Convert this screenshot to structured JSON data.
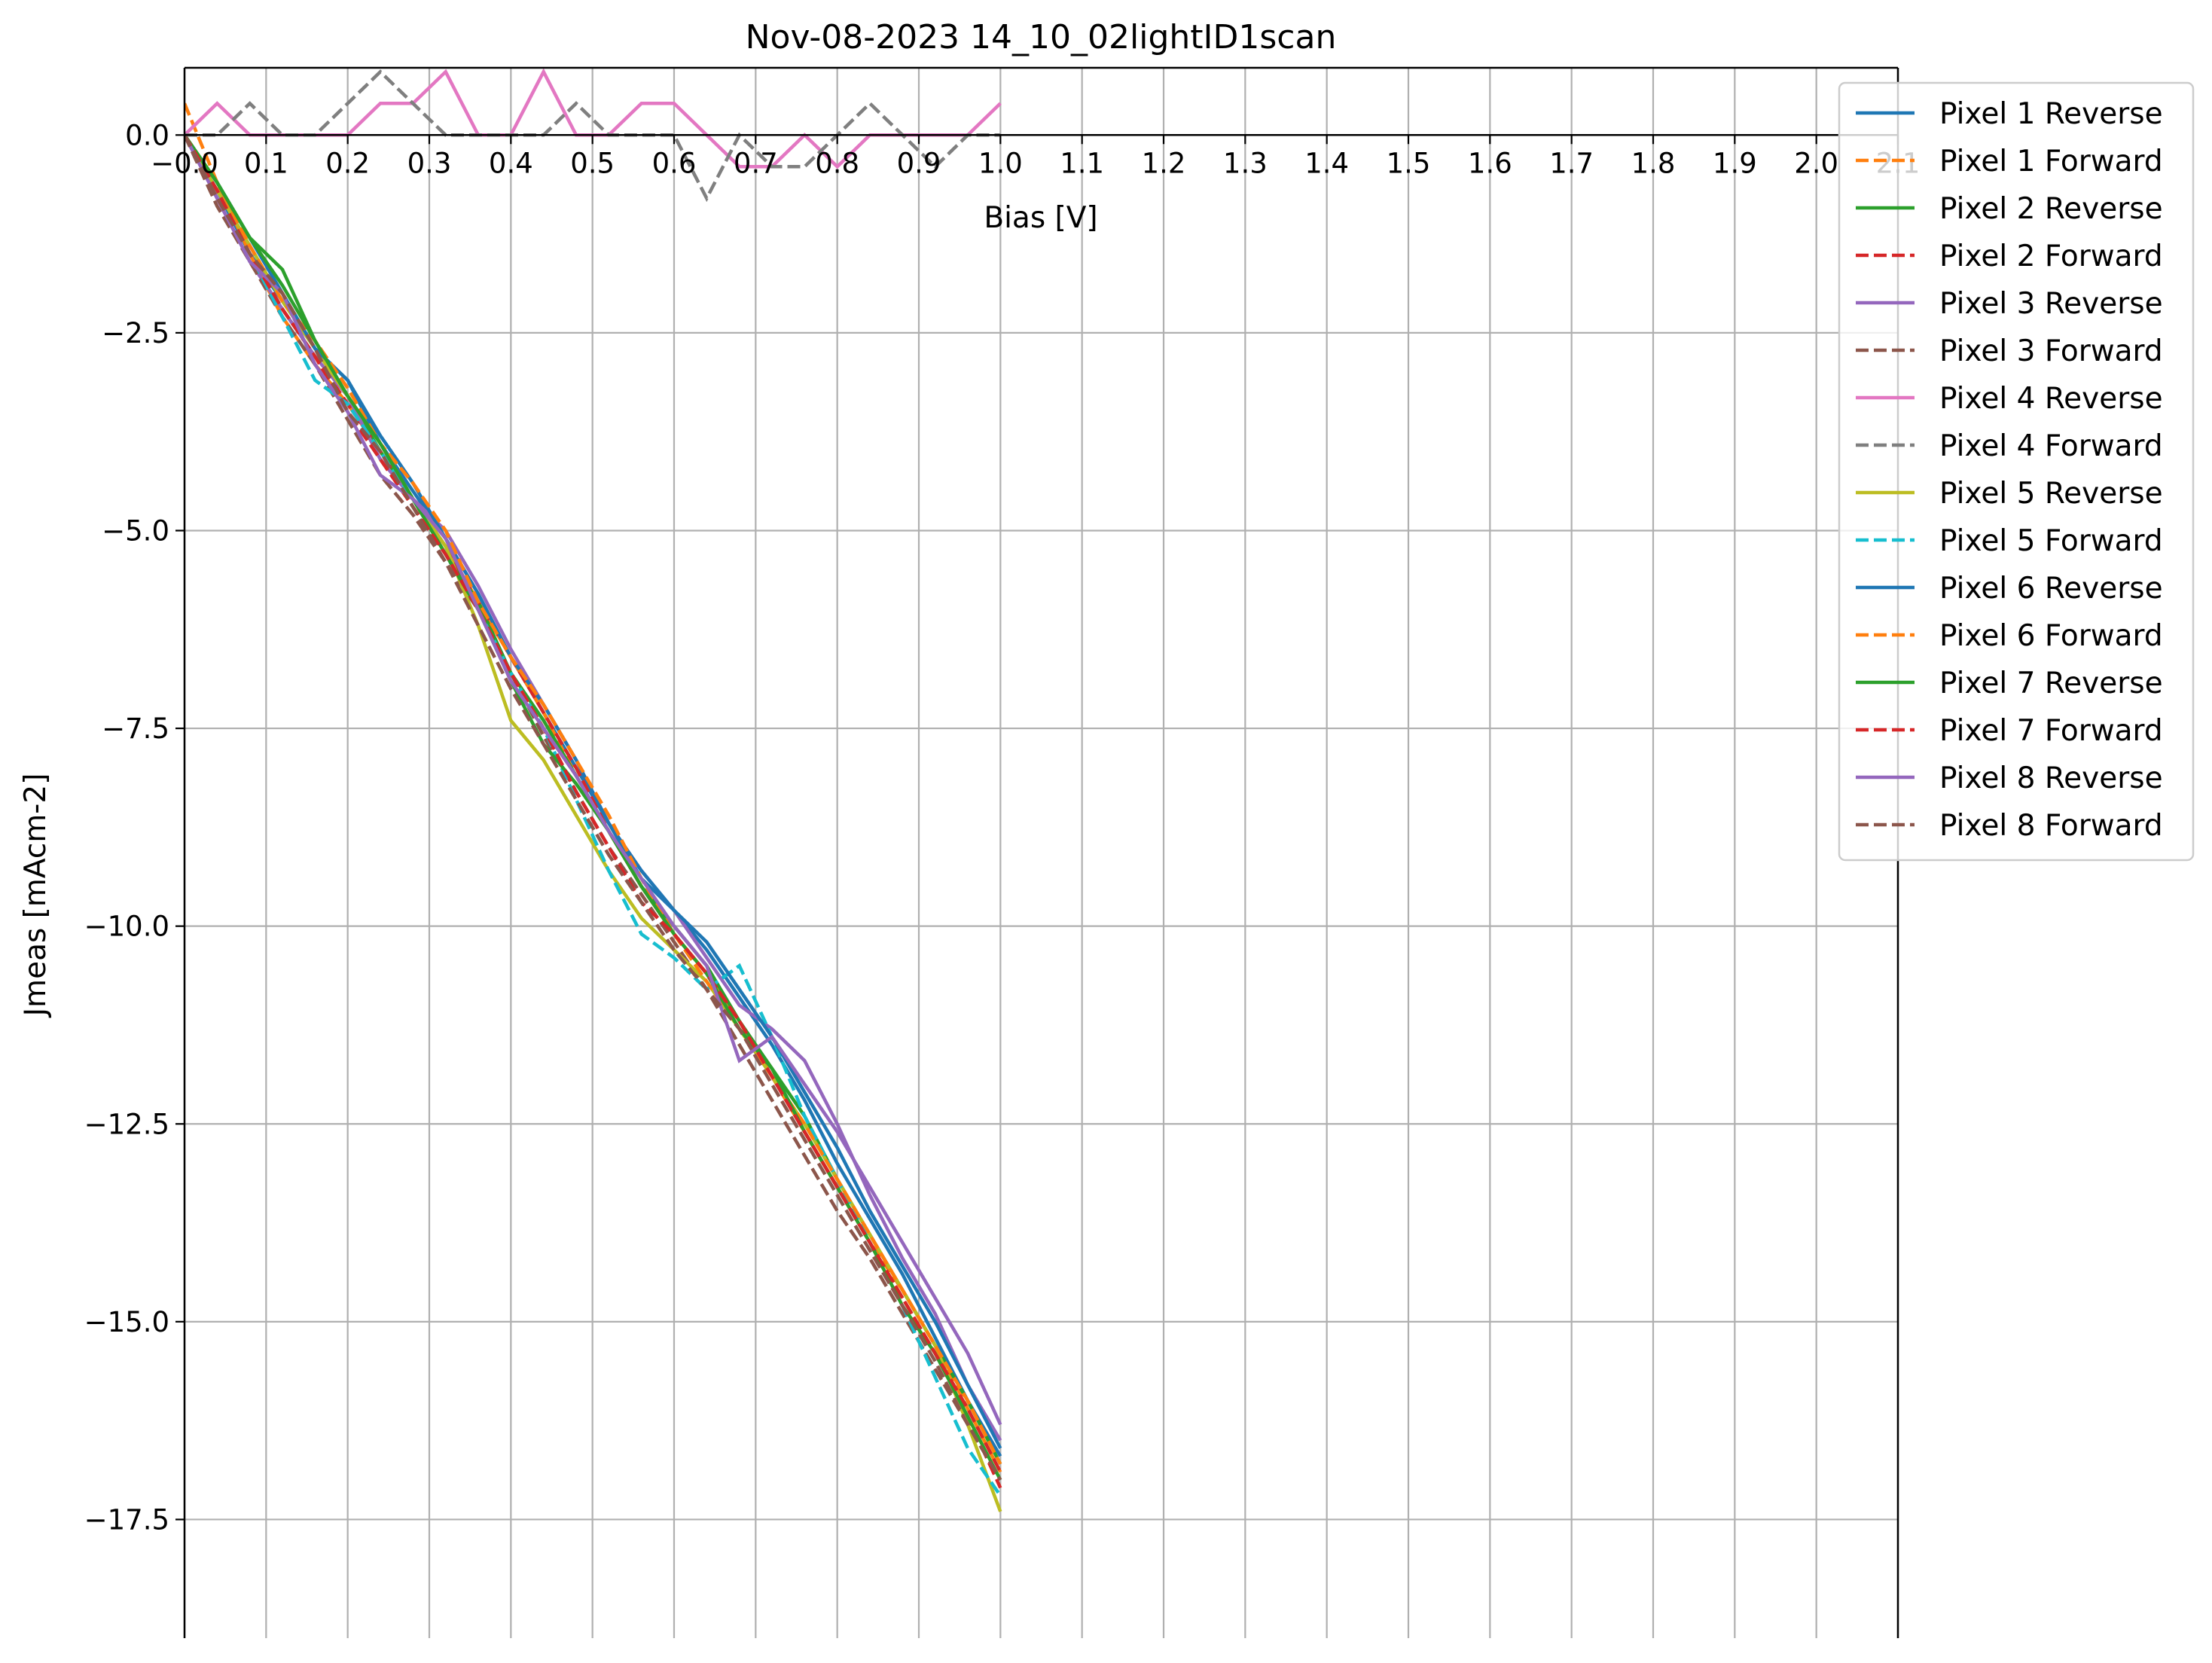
{
  "chart_data": {
    "type": "line",
    "title": "Nov-08-2023 14_10_02lightID1scan",
    "xlabel": "Bias [V]",
    "ylabel": "Jmeas [mAcm-2]",
    "xlim": [
      -0.0,
      2.1
    ],
    "ylim": [
      -19.0,
      0.85
    ],
    "x_ticks": [
      0.0,
      0.1,
      0.2,
      0.3,
      0.4,
      0.5,
      0.6,
      0.7,
      0.8,
      0.9,
      1.0,
      1.1,
      1.2,
      1.3,
      1.4,
      1.5,
      1.6,
      1.7,
      1.8,
      1.9,
      2.0,
      2.1
    ],
    "x_tick_labels": [
      "−0.0",
      "0.1",
      "0.2",
      "0.3",
      "0.4",
      "0.5",
      "0.6",
      "0.7",
      "0.8",
      "0.9",
      "1.0",
      "1.1",
      "1.2",
      "1.3",
      "1.4",
      "1.5",
      "1.6",
      "1.7",
      "1.8",
      "1.9",
      "2.0",
      "2.1"
    ],
    "y_ticks": [
      0.0,
      -2.5,
      -5.0,
      -7.5,
      -10.0,
      -12.5,
      -15.0,
      -17.5
    ],
    "y_tick_labels": [
      "0.0",
      "−2.5",
      "−5.0",
      "−7.5",
      "−10.0",
      "−12.5",
      "−15.0",
      "−17.5"
    ],
    "grid": true,
    "x_axis_at_zero": true,
    "legend_position": "top-right-outside",
    "x": [
      0.0,
      0.04,
      0.08,
      0.12,
      0.16,
      0.2,
      0.24,
      0.28,
      0.32,
      0.36,
      0.4,
      0.44,
      0.48,
      0.52,
      0.56,
      0.6,
      0.64,
      0.68,
      0.72,
      0.76,
      0.8,
      0.84,
      0.88,
      0.92,
      0.96,
      1.0
    ],
    "series": [
      {
        "name": "Pixel 1 Reverse",
        "color": "#1f77b4",
        "dash": "solid",
        "values": [
          0.0,
          -0.7,
          -1.5,
          -2.1,
          -2.7,
          -3.1,
          -3.9,
          -4.5,
          -5.1,
          -5.8,
          -6.6,
          -7.3,
          -8.0,
          -8.7,
          -9.4,
          -9.8,
          -10.3,
          -10.9,
          -11.5,
          -12.2,
          -13.0,
          -13.7,
          -14.4,
          -15.2,
          -16.0,
          -16.7
        ]
      },
      {
        "name": "Pixel 1 Forward",
        "color": "#ff7f0e",
        "dash": "dashed",
        "values": [
          0.4,
          -0.6,
          -1.5,
          -2.3,
          -2.9,
          -3.4,
          -4.0,
          -4.6,
          -5.2,
          -5.9,
          -6.6,
          -7.3,
          -8.1,
          -8.8,
          -9.5,
          -10.1,
          -10.6,
          -11.2,
          -11.9,
          -12.6,
          -13.3,
          -14.0,
          -14.6,
          -15.3,
          -16.1,
          -16.9
        ]
      },
      {
        "name": "Pixel 2 Reverse",
        "color": "#2ca02c",
        "dash": "solid",
        "values": [
          0.0,
          -0.6,
          -1.3,
          -1.7,
          -2.6,
          -3.3,
          -4.0,
          -4.6,
          -5.3,
          -5.9,
          -6.8,
          -7.4,
          -8.1,
          -8.8,
          -9.5,
          -10.0,
          -10.5,
          -11.2,
          -11.8,
          -12.4,
          -13.2,
          -13.9,
          -14.6,
          -15.3,
          -16.0,
          -16.8
        ]
      },
      {
        "name": "Pixel 2 Forward",
        "color": "#d62728",
        "dash": "dashed",
        "values": [
          0.0,
          -0.8,
          -1.5,
          -2.2,
          -2.8,
          -3.4,
          -4.0,
          -4.6,
          -5.2,
          -5.9,
          -6.6,
          -7.3,
          -8.0,
          -8.8,
          -9.5,
          -10.1,
          -10.6,
          -11.2,
          -11.9,
          -12.6,
          -13.3,
          -14.0,
          -14.7,
          -15.4,
          -16.2,
          -17.1
        ]
      },
      {
        "name": "Pixel 3 Reverse",
        "color": "#9467bd",
        "dash": "solid",
        "values": [
          0.0,
          -0.8,
          -1.6,
          -2.2,
          -2.8,
          -3.3,
          -4.1,
          -4.6,
          -5.0,
          -5.7,
          -6.5,
          -7.2,
          -7.9,
          -8.7,
          -9.3,
          -9.8,
          -10.4,
          -11.0,
          -11.3,
          -11.7,
          -12.5,
          -13.4,
          -14.2,
          -14.9,
          -15.8,
          -16.5
        ]
      },
      {
        "name": "Pixel 3 Forward",
        "color": "#8c564b",
        "dash": "dashed",
        "values": [
          0.0,
          -0.9,
          -1.6,
          -2.3,
          -2.9,
          -3.6,
          -4.3,
          -4.8,
          -5.4,
          -6.0,
          -6.8,
          -7.6,
          -8.3,
          -9.0,
          -9.6,
          -10.2,
          -10.8,
          -11.5,
          -12.2,
          -12.9,
          -13.6,
          -14.2,
          -14.9,
          -15.6,
          -16.3,
          -17.0
        ]
      },
      {
        "name": "Pixel 4 Reverse",
        "color": "#e377c2",
        "dash": "solid",
        "values": [
          0.0,
          0.4,
          0.0,
          0.0,
          0.0,
          0.0,
          0.4,
          0.4,
          0.8,
          0.0,
          0.0,
          0.8,
          0.0,
          0.0,
          0.4,
          0.4,
          0.0,
          -0.4,
          -0.4,
          0.0,
          -0.4,
          0.0,
          0.0,
          0.0,
          0.0,
          0.4
        ]
      },
      {
        "name": "Pixel 4 Forward",
        "color": "#7f7f7f",
        "dash": "dashed",
        "values": [
          0.0,
          0.0,
          0.4,
          0.0,
          0.0,
          0.4,
          0.8,
          0.4,
          0.0,
          0.0,
          0.0,
          0.0,
          0.4,
          0.0,
          0.0,
          0.0,
          -0.8,
          0.0,
          -0.4,
          -0.4,
          0.0,
          0.4,
          0.0,
          -0.4,
          0.0,
          0.0
        ]
      },
      {
        "name": "Pixel 5 Reverse",
        "color": "#bcbd22",
        "dash": "solid",
        "values": [
          0.0,
          -0.7,
          -1.4,
          -2.1,
          -2.7,
          -3.3,
          -3.9,
          -4.6,
          -5.2,
          -6.2,
          -7.4,
          -7.9,
          -8.6,
          -9.3,
          -9.9,
          -10.3,
          -10.7,
          -11.3,
          -11.9,
          -12.5,
          -13.2,
          -13.9,
          -14.6,
          -15.3,
          -16.3,
          -17.4
        ]
      },
      {
        "name": "Pixel 5 Forward",
        "color": "#17becf",
        "dash": "dashed",
        "values": [
          0.0,
          -0.7,
          -1.5,
          -2.3,
          -3.1,
          -3.4,
          -4.0,
          -4.6,
          -5.3,
          -6.0,
          -6.8,
          -7.5,
          -8.4,
          -9.3,
          -10.1,
          -10.4,
          -10.8,
          -10.5,
          -11.4,
          -12.4,
          -13.2,
          -14.0,
          -14.8,
          -15.7,
          -16.6,
          -17.2
        ]
      },
      {
        "name": "Pixel 6 Reverse",
        "color": "#1f77b4",
        "dash": "solid",
        "values": [
          0.0,
          -0.6,
          -1.3,
          -2.0,
          -2.7,
          -3.1,
          -3.8,
          -4.4,
          -5.1,
          -5.8,
          -6.6,
          -7.2,
          -7.9,
          -8.7,
          -9.3,
          -9.8,
          -10.2,
          -10.8,
          -11.4,
          -12.1,
          -12.8,
          -13.6,
          -14.3,
          -15.0,
          -15.8,
          -16.6
        ]
      },
      {
        "name": "Pixel 6 Forward",
        "color": "#ff7f0e",
        "dash": "dashed",
        "values": [
          0.0,
          -0.6,
          -1.4,
          -2.1,
          -2.6,
          -3.2,
          -3.9,
          -4.4,
          -5.0,
          -5.9,
          -6.6,
          -7.2,
          -7.9,
          -8.6,
          -9.4,
          -10.1,
          -10.7,
          -11.3,
          -11.9,
          -12.5,
          -13.2,
          -13.9,
          -14.6,
          -15.3,
          -16.0,
          -16.8
        ]
      },
      {
        "name": "Pixel 7 Reverse",
        "color": "#2ca02c",
        "dash": "solid",
        "values": [
          0.0,
          -0.6,
          -1.3,
          -1.9,
          -2.6,
          -3.3,
          -3.9,
          -4.6,
          -5.3,
          -6.0,
          -6.9,
          -7.7,
          -8.2,
          -8.8,
          -9.5,
          -10.1,
          -10.6,
          -11.3,
          -11.8,
          -12.6,
          -13.3,
          -14.0,
          -14.8,
          -15.4,
          -16.2,
          -17.0
        ]
      },
      {
        "name": "Pixel 7 Forward",
        "color": "#d62728",
        "dash": "dashed",
        "values": [
          0.0,
          -0.7,
          -1.5,
          -2.2,
          -2.8,
          -3.5,
          -4.1,
          -4.7,
          -5.3,
          -6.0,
          -6.8,
          -7.5,
          -8.3,
          -9.0,
          -9.7,
          -10.1,
          -10.6,
          -11.2,
          -11.9,
          -12.6,
          -13.3,
          -14.0,
          -14.7,
          -15.4,
          -16.1,
          -16.9
        ]
      },
      {
        "name": "Pixel 8 Reverse",
        "color": "#9467bd",
        "dash": "solid",
        "values": [
          0.0,
          -0.8,
          -1.6,
          -2.0,
          -2.9,
          -3.5,
          -4.3,
          -4.6,
          -5.1,
          -6.0,
          -6.9,
          -7.5,
          -8.1,
          -8.8,
          -9.4,
          -10.0,
          -10.5,
          -11.7,
          -11.4,
          -12.0,
          -12.6,
          -13.3,
          -14.0,
          -14.7,
          -15.4,
          -16.3
        ]
      },
      {
        "name": "Pixel 8 Forward",
        "color": "#8c564b",
        "dash": "dashed",
        "values": [
          0.0,
          -0.8,
          -1.5,
          -2.0,
          -2.7,
          -3.5,
          -4.0,
          -4.7,
          -5.4,
          -6.2,
          -7.0,
          -7.7,
          -8.4,
          -9.1,
          -9.7,
          -10.3,
          -10.8,
          -11.3,
          -12.0,
          -12.7,
          -13.4,
          -14.1,
          -14.8,
          -15.5,
          -16.3,
          -17.0
        ]
      }
    ]
  }
}
